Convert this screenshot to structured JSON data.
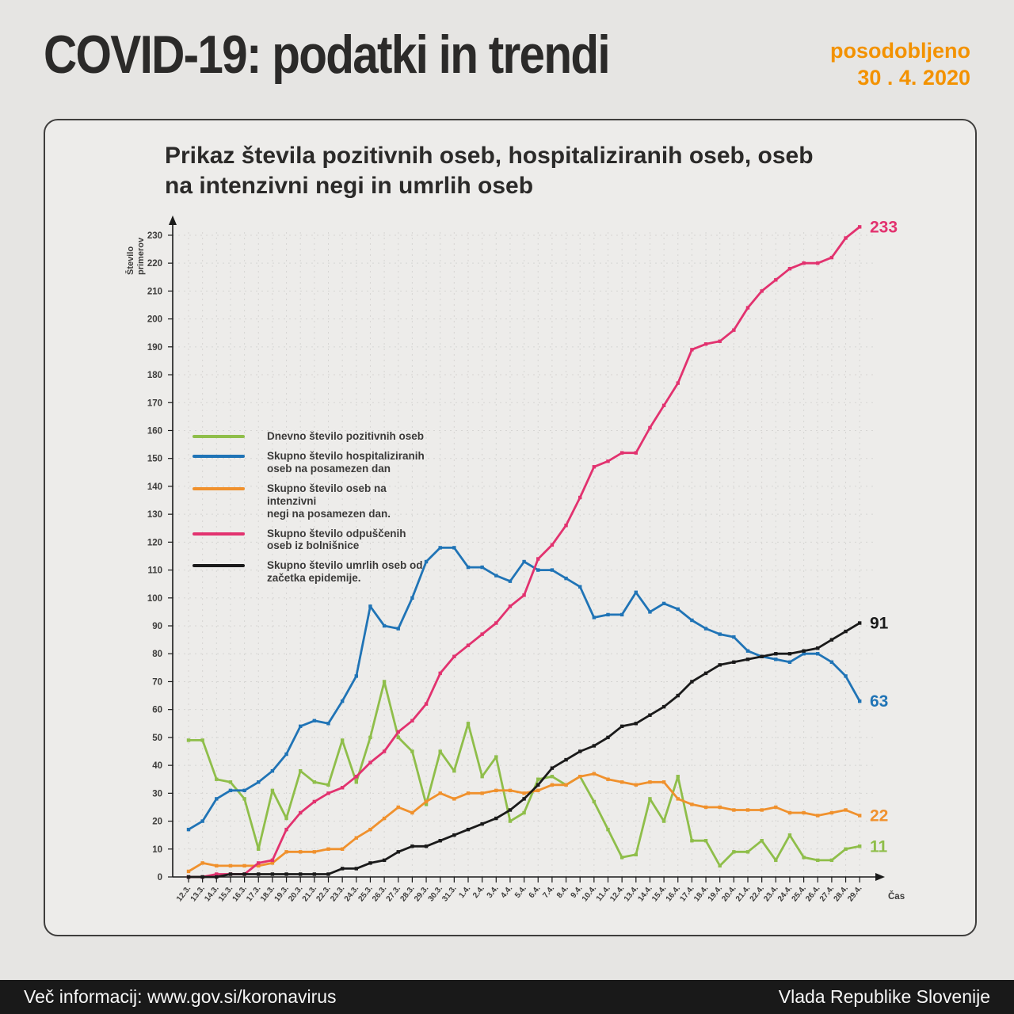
{
  "page": {
    "title": "COVID-19: podatki in trendi",
    "updated_label": "posodobljeno",
    "updated_date": "30 . 4. 2020",
    "footer_left": "Več informacij: www.gov.si/koronavirus",
    "footer_right": "Vlada Republike Slovenije"
  },
  "chart_card": {
    "title_line1": "Prikaz števila pozitivnih oseb, hospitaliziranih oseb, oseb",
    "title_line2": "na intenzivni negi in umrlih oseb"
  },
  "colors": {
    "accent_orange": "#f39200",
    "page_background": "#e6e5e3",
    "card_background": "#edecea",
    "footer_background": "#191919",
    "grid": "#d6d5d3",
    "axis": "#1a1a1a"
  },
  "chart_data": {
    "type": "line",
    "title": "Prikaz števila pozitivnih oseb, hospitaliziranih oseb, oseb na intenzivni negi in umrlih oseb",
    "xlabel": "Čas",
    "ylabel": "Število primerov",
    "ylabel_lines": [
      "Število",
      "primerov"
    ],
    "ylim": [
      0,
      230
    ],
    "ytick_step": 10,
    "grid": "dashed",
    "legend_position": "inside-left",
    "categories": [
      "12.3.",
      "13.3.",
      "14.3.",
      "15.3.",
      "16.3.",
      "17.3.",
      "18.3.",
      "19.3.",
      "20.3.",
      "21.3.",
      "22.3.",
      "23.3.",
      "24.3.",
      "25.3.",
      "26.3.",
      "27.3.",
      "28.3.",
      "29.3.",
      "30.3.",
      "31.3.",
      "1.4.",
      "2.4.",
      "3.4.",
      "4.4.",
      "5.4.",
      "6.4.",
      "7.4.",
      "8.4.",
      "9.4.",
      "10.4.",
      "11.4.",
      "12.4.",
      "13.4.",
      "14.4.",
      "15.4.",
      "16.4.",
      "17.4.",
      "18.4.",
      "19.4.",
      "20.4.",
      "21.4.",
      "22.4.",
      "23.4.",
      "24.4.",
      "25.4.",
      "26.4.",
      "27.4.",
      "28.4.",
      "29.4."
    ],
    "series": [
      {
        "name": "Dnevno število pozitivnih oseb",
        "legend_lines": "Dnevno število pozitivnih oseb",
        "color": "#8fbe4a",
        "end_label": "11",
        "values": [
          49,
          49,
          35,
          34,
          28,
          10,
          31,
          21,
          38,
          34,
          33,
          49,
          34,
          50,
          70,
          50,
          45,
          26,
          45,
          38,
          55,
          36,
          43,
          20,
          23,
          35,
          36,
          33,
          36,
          27,
          17,
          7,
          8,
          28,
          20,
          36,
          13,
          13,
          4,
          9,
          9,
          13,
          6,
          15,
          7,
          6,
          6,
          10,
          11
        ]
      },
      {
        "name": "Skupno število hospitaliziranih oseb na posamezen dan",
        "legend_lines": "Skupno število hospitaliziranih\noseb na posamezen dan",
        "color": "#2074b6",
        "end_label": "63",
        "values": [
          17,
          20,
          28,
          31,
          31,
          34,
          38,
          44,
          54,
          56,
          55,
          63,
          72,
          97,
          90,
          89,
          100,
          113,
          118,
          118,
          111,
          111,
          108,
          106,
          113,
          110,
          110,
          107,
          104,
          93,
          94,
          94,
          102,
          95,
          98,
          96,
          92,
          89,
          87,
          86,
          81,
          79,
          78,
          77,
          80,
          80,
          77,
          72,
          63
        ]
      },
      {
        "name": "Skupno število oseb na intenzivni negi na posamezen dan.",
        "legend_lines": "Skupno število oseb na intenzivni\nnegi na posamezen dan.",
        "color": "#f0912d",
        "end_label": "22",
        "values": [
          2,
          5,
          4,
          4,
          4,
          4,
          5,
          9,
          9,
          9,
          10,
          10,
          14,
          17,
          21,
          25,
          23,
          27,
          30,
          28,
          30,
          30,
          31,
          31,
          30,
          31,
          33,
          33,
          36,
          37,
          35,
          34,
          33,
          34,
          34,
          28,
          26,
          25,
          25,
          24,
          24,
          24,
          25,
          23,
          23,
          22,
          23,
          24,
          22
        ]
      },
      {
        "name": "Skupno število odpuščenih oseb iz bolnišnice",
        "legend_lines": "Skupno število odpuščenih\noseb iz bolnišnice",
        "color": "#e2326f",
        "end_label": "233",
        "values": [
          0,
          0,
          1,
          1,
          1,
          5,
          6,
          17,
          23,
          27,
          30,
          32,
          36,
          41,
          45,
          52,
          56,
          62,
          73,
          79,
          83,
          87,
          91,
          97,
          101,
          114,
          119,
          126,
          136,
          147,
          149,
          152,
          152,
          161,
          169,
          177,
          189,
          191,
          192,
          196,
          204,
          210,
          214,
          218,
          220,
          220,
          222,
          229,
          233
        ]
      },
      {
        "name": "Skupno število umrlih oseb od začetka epidemije.",
        "legend_lines": "Skupno število umrlih oseb od\nzačetka epidemije.",
        "color": "#1a1a1a",
        "end_label": "91",
        "values": [
          0,
          0,
          0,
          1,
          1,
          1,
          1,
          1,
          1,
          1,
          1,
          3,
          3,
          5,
          6,
          9,
          11,
          11,
          13,
          15,
          17,
          19,
          21,
          24,
          28,
          33,
          39,
          42,
          45,
          47,
          50,
          54,
          55,
          58,
          61,
          65,
          70,
          73,
          76,
          77,
          78,
          79,
          80,
          80,
          81,
          82,
          85,
          88,
          91
        ]
      }
    ]
  }
}
